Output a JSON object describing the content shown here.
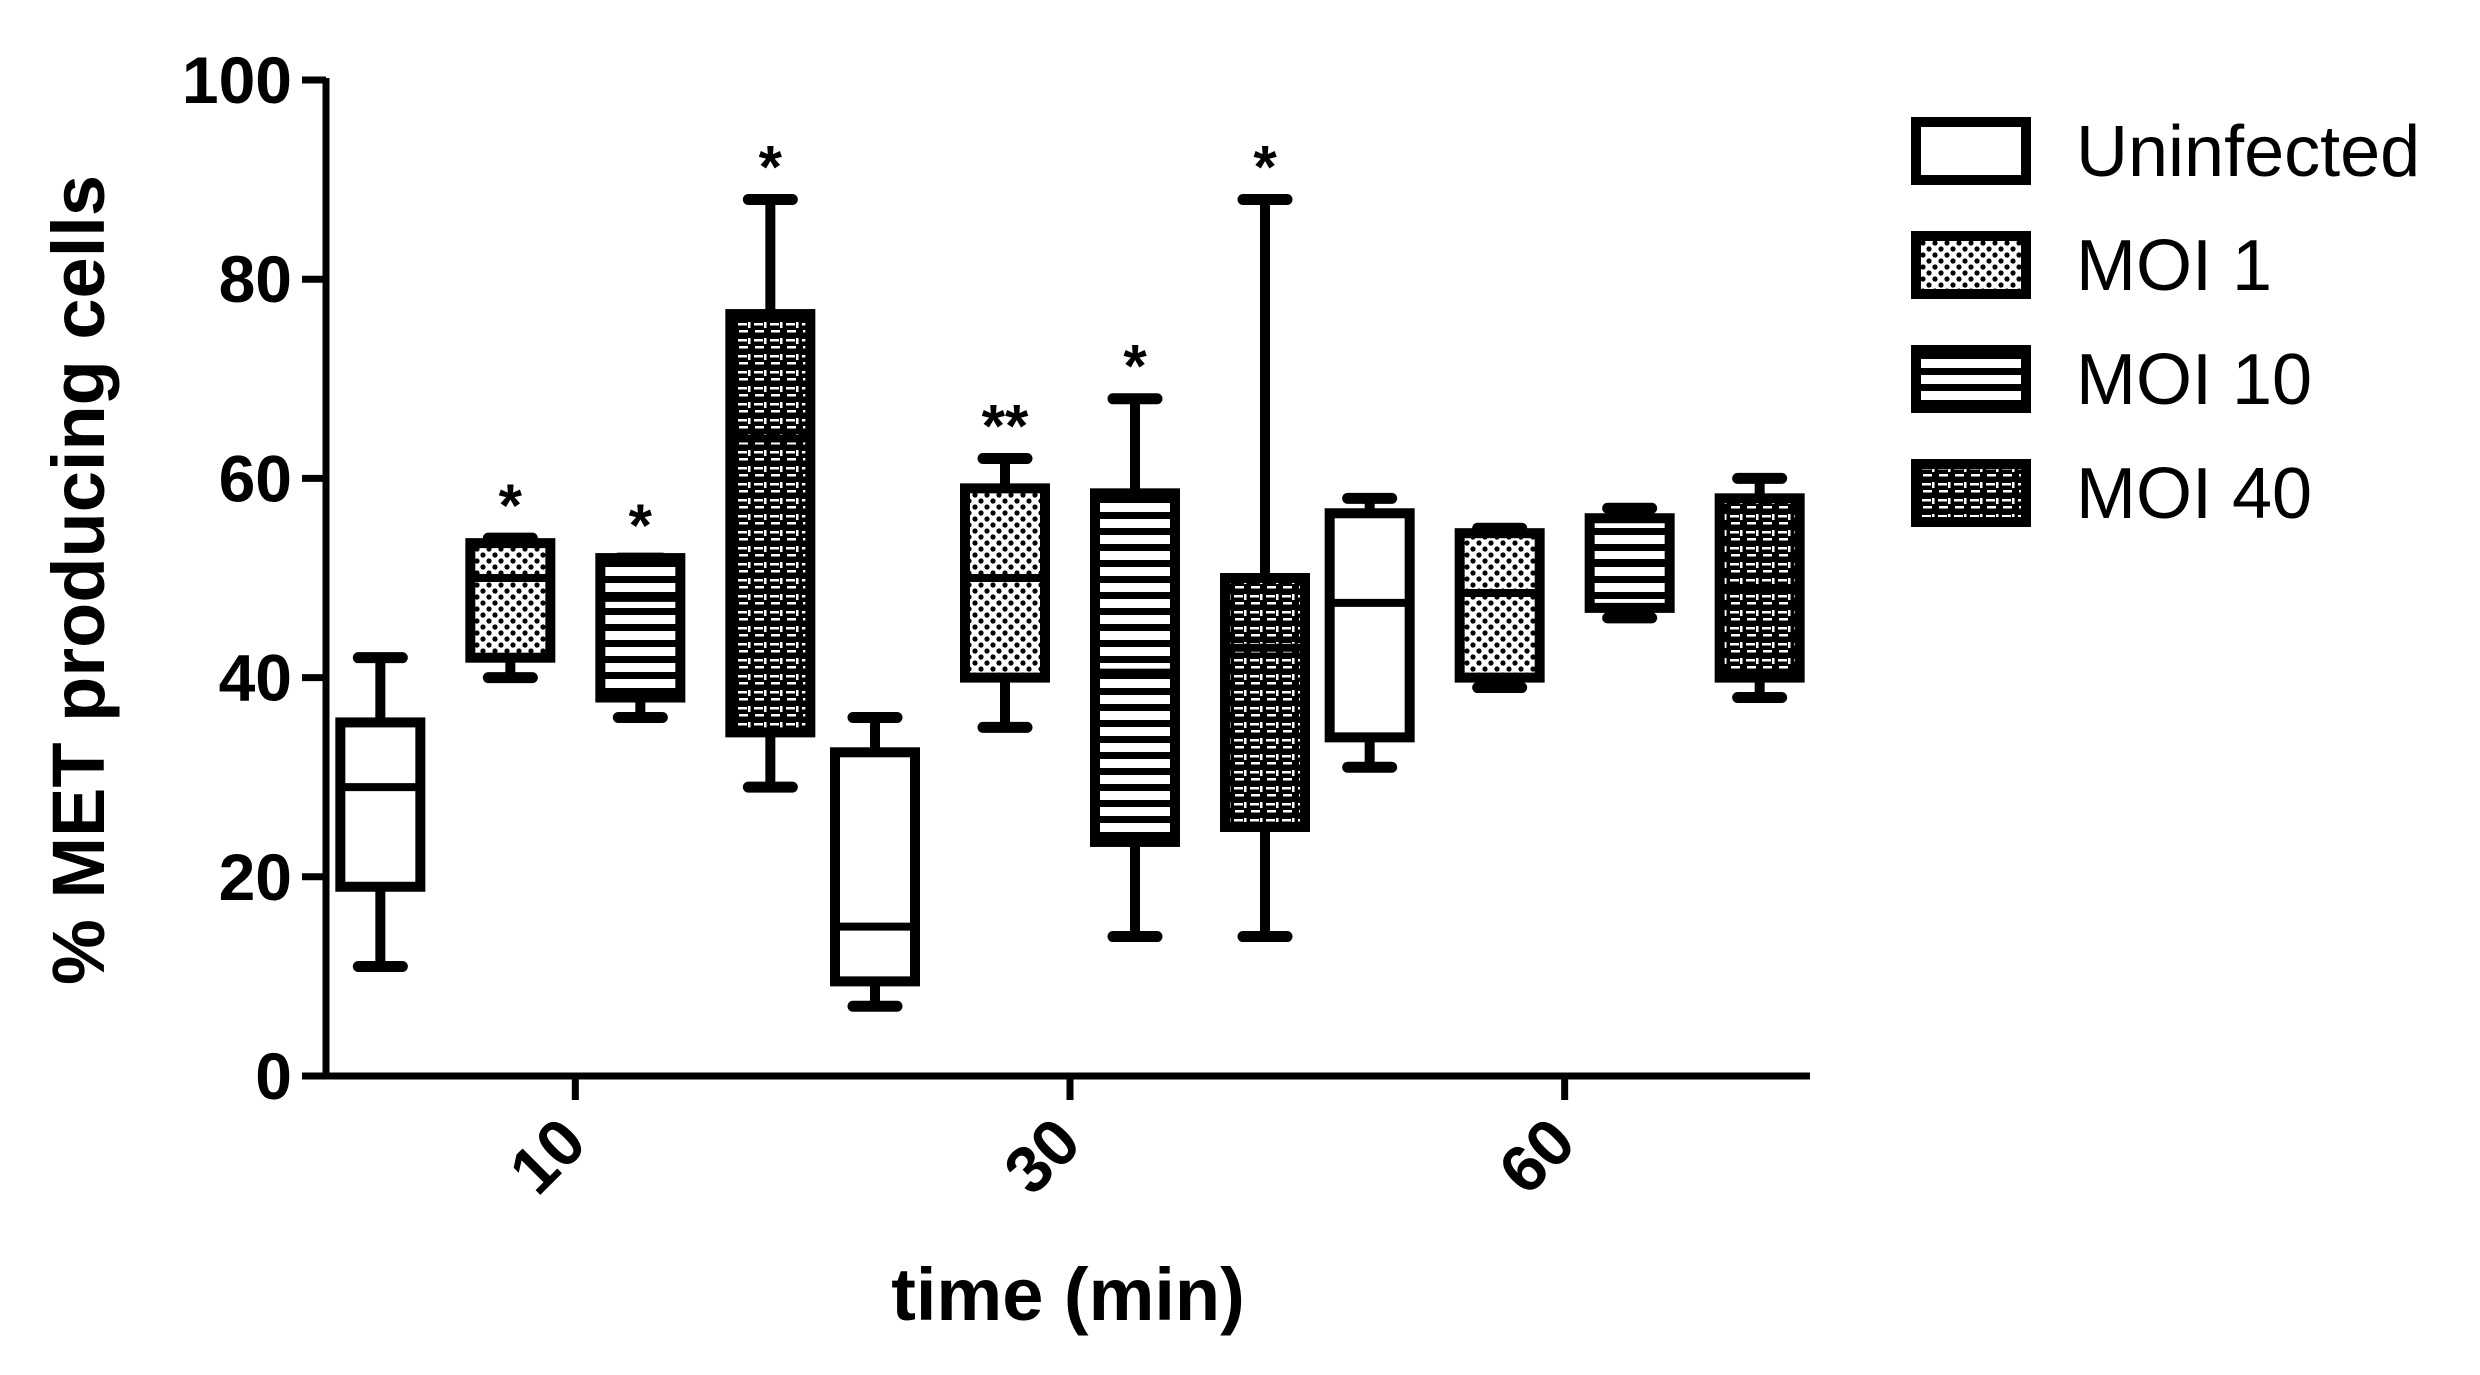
{
  "chart_data": {
    "type": "box",
    "title": "",
    "xlabel": "time (min)",
    "ylabel": "% MET producing cells",
    "ylim": [
      0,
      100
    ],
    "yticks": [
      0,
      20,
      40,
      60,
      80,
      100
    ],
    "categories": [
      "10",
      "30",
      "60"
    ],
    "legend_position": "right",
    "series": [
      {
        "name": "Uninfected",
        "pattern": "blank",
        "boxes": [
          {
            "category": "10",
            "min": 11,
            "q1": 19,
            "median": 29,
            "q3": 35.5,
            "max": 42,
            "annotation": ""
          },
          {
            "category": "30",
            "min": 7,
            "q1": 9.5,
            "median": 15,
            "q3": 32.5,
            "max": 36,
            "annotation": ""
          },
          {
            "category": "60",
            "min": 31,
            "q1": 34,
            "median": 47.5,
            "q3": 56.5,
            "max": 58,
            "annotation": ""
          }
        ]
      },
      {
        "name": "MOI 1",
        "pattern": "dots",
        "boxes": [
          {
            "category": "10",
            "min": 40,
            "q1": 42,
            "median": 50,
            "q3": 53.5,
            "max": 54,
            "annotation": "*"
          },
          {
            "category": "30",
            "min": 35,
            "q1": 40,
            "median": 50,
            "q3": 59,
            "max": 62,
            "annotation": "**"
          },
          {
            "category": "60",
            "min": 39,
            "q1": 40,
            "median": 48.5,
            "q3": 54.5,
            "max": 55,
            "annotation": ""
          }
        ]
      },
      {
        "name": "MOI 10",
        "pattern": "hlines",
        "boxes": [
          {
            "category": "10",
            "min": 36,
            "q1": 38,
            "median": 48,
            "q3": 52,
            "max": 52,
            "annotation": "*"
          },
          {
            "category": "30",
            "min": 14,
            "q1": 23.5,
            "median": 40.5,
            "q3": 58.5,
            "max": 68,
            "annotation": "*"
          },
          {
            "category": "60",
            "min": 46,
            "q1": 47,
            "median": 51.5,
            "q3": 56,
            "max": 57,
            "annotation": ""
          }
        ]
      },
      {
        "name": "MOI 40",
        "pattern": "grid",
        "boxes": [
          {
            "category": "10",
            "min": 29,
            "q1": 34.5,
            "median": 64,
            "q3": 76.5,
            "max": 88,
            "annotation": "*"
          },
          {
            "category": "30",
            "min": 14,
            "q1": 25,
            "median": 43,
            "q3": 50,
            "max": 88,
            "annotation": "*"
          },
          {
            "category": "60",
            "min": 38,
            "q1": 40,
            "median": 49,
            "q3": 58,
            "max": 60,
            "annotation": ""
          }
        ]
      }
    ]
  }
}
